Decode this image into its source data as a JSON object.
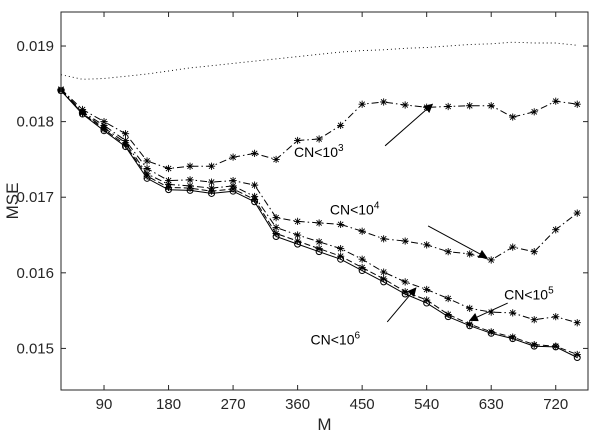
{
  "chart_data": {
    "type": "line",
    "xlabel": "M",
    "ylabel": "MSE",
    "xlim": [
      30,
      765
    ],
    "ylim": [
      0.01445,
      0.01945
    ],
    "x_ticks": [
      90,
      180,
      270,
      360,
      450,
      540,
      630,
      720
    ],
    "x_tick_labels": [
      "90",
      "180",
      "270",
      "360",
      "450",
      "540",
      "630",
      "720"
    ],
    "y_ticks": [
      0.015,
      0.016,
      0.017,
      0.018,
      0.019
    ],
    "y_tick_labels": [
      "0.015",
      "0.016",
      "0.017",
      "0.018",
      "0.019"
    ],
    "grid": false,
    "x": [
      30,
      60,
      90,
      120,
      150,
      180,
      210,
      240,
      270,
      300,
      330,
      360,
      390,
      420,
      450,
      480,
      510,
      540,
      570,
      600,
      630,
      660,
      690,
      720,
      750
    ],
    "series": [
      {
        "values": [
          0.01862,
          0.01856,
          0.01857,
          0.0186,
          0.01863,
          0.01867,
          0.01871,
          0.01874,
          0.01877,
          0.0188,
          0.01883,
          0.01886,
          0.01889,
          0.01892,
          0.01894,
          0.01895,
          0.01897,
          0.01898,
          0.019,
          0.01902,
          0.01903,
          0.01905,
          0.01904,
          0.01904,
          0.01901
        ],
        "style": "dotted",
        "marker": "none"
      },
      {
        "values": [
          0.01843,
          0.01816,
          0.018,
          0.01784,
          0.01748,
          0.01738,
          0.01741,
          0.01741,
          0.01753,
          0.01758,
          0.0175,
          0.01775,
          0.01777,
          0.01795,
          0.01823,
          0.01826,
          0.01822,
          0.01819,
          0.0182,
          0.01821,
          0.01821,
          0.01806,
          0.01813,
          0.01827,
          0.01823
        ],
        "style": "dashdot",
        "marker": "star"
      },
      {
        "values": [
          0.01842,
          0.01813,
          0.01795,
          0.01775,
          0.01738,
          0.01722,
          0.01723,
          0.0172,
          0.01722,
          0.01716,
          0.01673,
          0.01668,
          0.01666,
          0.01664,
          0.01655,
          0.01645,
          0.01642,
          0.01637,
          0.01628,
          0.01625,
          0.01617,
          0.01634,
          0.01628,
          0.01657,
          0.01679
        ],
        "style": "dashdot",
        "marker": "star"
      },
      {
        "values": [
          0.01842,
          0.01812,
          0.01792,
          0.01772,
          0.01731,
          0.01717,
          0.01715,
          0.01712,
          0.01715,
          0.01701,
          0.0166,
          0.0165,
          0.01641,
          0.01632,
          0.01618,
          0.01601,
          0.01588,
          0.01578,
          0.01566,
          0.01553,
          0.01548,
          0.01547,
          0.01538,
          0.01542,
          0.01534
        ],
        "style": "dashdot",
        "marker": "star"
      },
      {
        "values": [
          0.01841,
          0.01811,
          0.0179,
          0.01769,
          0.01728,
          0.01713,
          0.01712,
          0.01708,
          0.01711,
          0.01697,
          0.01652,
          0.01642,
          0.01632,
          0.01622,
          0.01607,
          0.01592,
          0.01575,
          0.01564,
          0.01545,
          0.01532,
          0.01522,
          0.01515,
          0.01505,
          0.01503,
          0.01492
        ],
        "style": "dashed",
        "marker": "star"
      },
      {
        "values": [
          0.01841,
          0.0181,
          0.01788,
          0.01767,
          0.01725,
          0.0171,
          0.01709,
          0.01705,
          0.01708,
          0.01694,
          0.01648,
          0.01638,
          0.01628,
          0.01618,
          0.01603,
          0.01588,
          0.01572,
          0.0156,
          0.01542,
          0.0153,
          0.0152,
          0.01513,
          0.01503,
          0.01502,
          0.01488
        ],
        "style": "solid",
        "marker": "circle"
      }
    ],
    "annotations": [
      {
        "base": "CN<10",
        "exp": "3",
        "text_x": 355,
        "text_y": 0.01753,
        "arrow_from": [
          482,
          0.01768
        ],
        "arrow_to": [
          548,
          0.01823
        ]
      },
      {
        "base": "CN<10",
        "exp": "4",
        "text_x": 405,
        "text_y": 0.01677,
        "arrow_from": [
          542,
          0.01662
        ],
        "arrow_to": [
          624,
          0.0162
        ]
      },
      {
        "base": "CN<10",
        "exp": "5",
        "text_x": 648,
        "text_y": 0.01565,
        "arrow_from": [
          653,
          0.0156
        ],
        "arrow_to": [
          600,
          0.01537
        ]
      },
      {
        "base": "CN<10",
        "exp": "6",
        "text_x": 378,
        "text_y": 0.01505,
        "arrow_from": [
          485,
          0.01535
        ],
        "arrow_to": [
          525,
          0.0158
        ]
      }
    ]
  }
}
